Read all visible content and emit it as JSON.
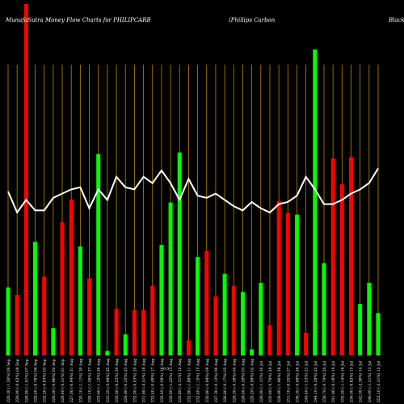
{
  "header": {
    "left_title": "MunafaSutra  Money Flow  Charts for PHILIPCARB",
    "right_title": "(Phillips Carbon",
    "far_right_title": "Black"
  },
  "colors": {
    "background": "#000000",
    "up": "#00ff00",
    "down": "#ff0000",
    "grid": "#b8860b",
    "line": "#ffffff"
  },
  "mid_label": "0 0",
  "chart_data": {
    "type": "bar",
    "title": "MunafaSutra  Money Flow  Charts for PHILIPCARB",
    "categories": [
      "228.30 (-1.58%) 09 Sep",
      "229.90 (-0.62%) 08 Sep",
      "228.90 (-1.91%) 07 Sep",
      "229.40 (-0.76%) 06 Sep",
      "232.20 (-0.83%) 03 Sep",
      "229.30 (-0.96%) 02 Sep",
      "229.40 (-0.31%) 01 Sep",
      "227.00 (-0.94%) 31 Aug",
      "230.10 (-1.11%) 30 Aug",
      "229.10 (-1.26%) 27 Aug",
      "233.60 (-1.12%) 26 Aug",
      "233.35 (-0.99%) 25 Aug",
      "230.50 (-0.23%) 24 Aug",
      "229.90 (-0.35%) 23 Aug",
      "232.00 (-0.03%) 20 Aug",
      "231.60 (-0.41%) 18 Aug",
      "232.40 (-0.48%) 17 Aug",
      "235.45 (-0.58%) 16 Aug",
      "230.60 (-1.25%) 13 Aug",
      "233.80 (-2.31%) 12 Aug",
      "232.80 (-1.88%) 11 Aug",
      "232.40 (-1.15%) 10 Aug",
      "230.80 (-0.84%) 09 Aug",
      "227.30 (-0.12%) 06 Aug",
      "226.60 (-0.17%) 05 Aug",
      "228.30 (-0.38%) 04 Aug",
      "226.40 (-0.59%) 03 Aug",
      "229.20 (-0.99%) 02 Aug",
      "228.90 (-1.31%) 30 Jul",
      "230.60 (-0.79%) 29 Jul",
      "228.80 (-1.66%) 28 Jul",
      "231.10 (-0.25%) 27 Jul",
      "236.35 (-0.99%) 26 Jul",
      "249.40 (-1.53%) 23 Jul",
      "244.10 (-0.28%) 22 Jul",
      "238.70 (-0.74%) 20 Jul",
      "241.90 (-0.18%) 19 Jul",
      "235.00 (-1.14%) 16 Jul",
      "236.00 (-0.82%) 15 Jul",
      "242.50 (-2.36%) 14 Jul",
      "246.90 (-1.31%) 13 Jul",
      "252.10 (-2.31%) 12 Jul"
    ],
    "values": [
      45,
      40,
      232,
      75,
      52,
      18,
      88,
      103,
      72,
      51,
      133,
      3,
      31,
      14,
      30,
      30,
      46,
      73,
      101,
      134,
      10,
      65,
      69,
      39,
      54,
      46,
      42,
      4,
      48,
      20,
      102,
      94,
      93,
      15,
      202,
      61,
      130,
      113,
      131,
      34,
      48,
      28
    ],
    "colors": [
      "up",
      "down",
      "down",
      "up",
      "down",
      "up",
      "down",
      "down",
      "up",
      "down",
      "up",
      "up",
      "down",
      "up",
      "down",
      "down",
      "down",
      "up",
      "up",
      "up",
      "down",
      "up",
      "down",
      "down",
      "up",
      "down",
      "up",
      "up",
      "up",
      "down",
      "down",
      "down",
      "up",
      "down",
      "up",
      "up",
      "down",
      "down",
      "down",
      "up",
      "up",
      "up"
    ],
    "line": [
      20,
      30,
      24,
      29,
      29,
      23,
      21,
      19,
      18,
      28,
      19,
      24,
      13,
      18,
      19,
      13,
      16,
      10,
      16,
      24,
      14,
      22,
      23,
      21,
      24,
      27,
      29,
      25,
      28,
      30,
      26,
      25,
      22,
      13,
      19,
      26,
      26,
      24,
      21,
      19,
      16,
      9
    ],
    "ylim": [
      0,
      230
    ],
    "line_ylim": [
      0,
      100
    ],
    "grid": true
  }
}
